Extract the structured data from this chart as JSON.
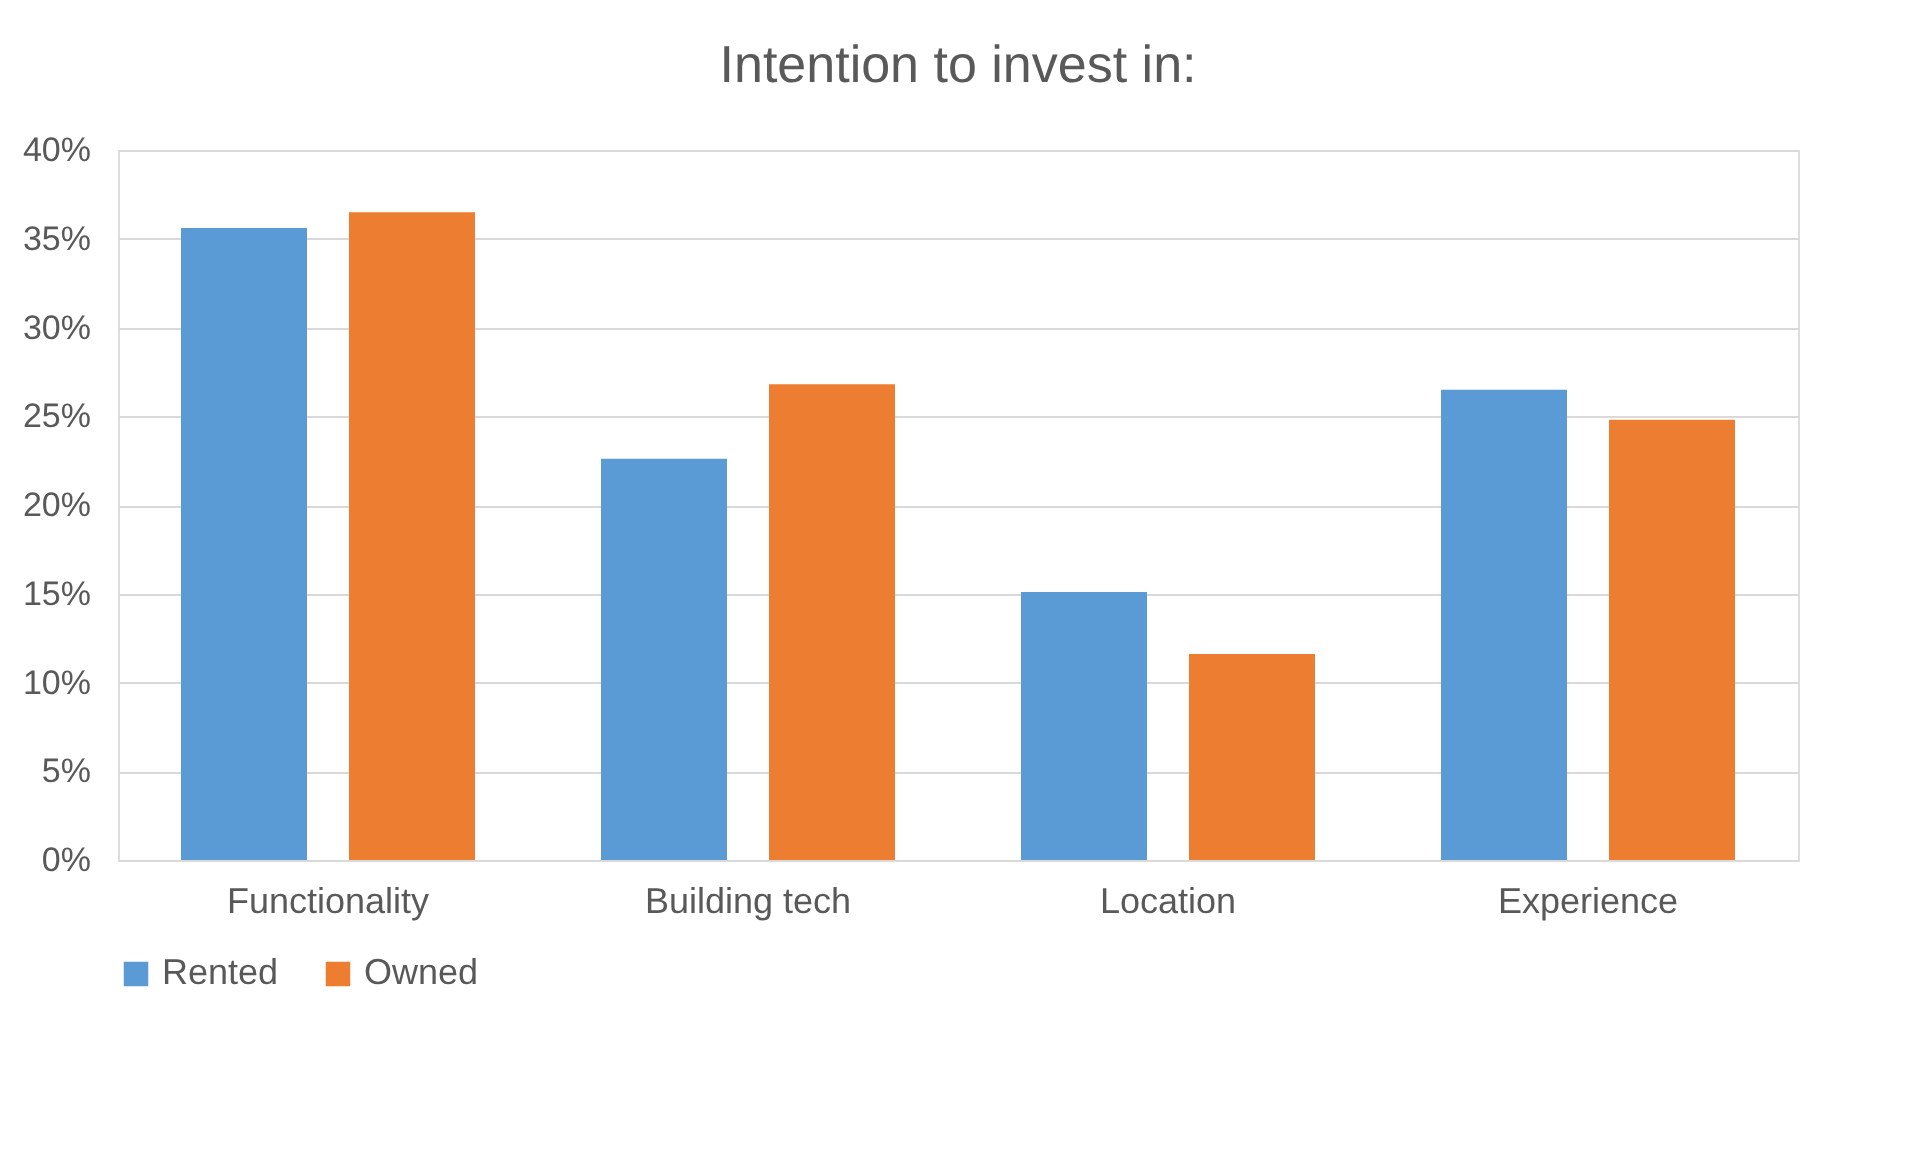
{
  "chart_data": {
    "type": "bar",
    "title": "Intention to invest in:",
    "categories": [
      "Functionality",
      "Building tech",
      "Location",
      "Experience"
    ],
    "series": [
      {
        "name": "Rented",
        "color": "#5b9bd5",
        "values": [
          35.6,
          22.6,
          15.1,
          26.5
        ]
      },
      {
        "name": "Owned",
        "color": "#ed7d31",
        "values": [
          36.5,
          26.8,
          11.6,
          24.8
        ]
      }
    ],
    "ylim": [
      0,
      40
    ],
    "yticks": [
      {
        "value": 0,
        "label": "0%"
      },
      {
        "value": 5,
        "label": "5%"
      },
      {
        "value": 10,
        "label": "10%"
      },
      {
        "value": 15,
        "label": "15%"
      },
      {
        "value": 20,
        "label": "20%"
      },
      {
        "value": 25,
        "label": "25%"
      },
      {
        "value": 30,
        "label": "30%"
      },
      {
        "value": 35,
        "label": "35%"
      },
      {
        "value": 40,
        "label": "40%"
      }
    ],
    "grid": "y",
    "legend": "bottom"
  }
}
